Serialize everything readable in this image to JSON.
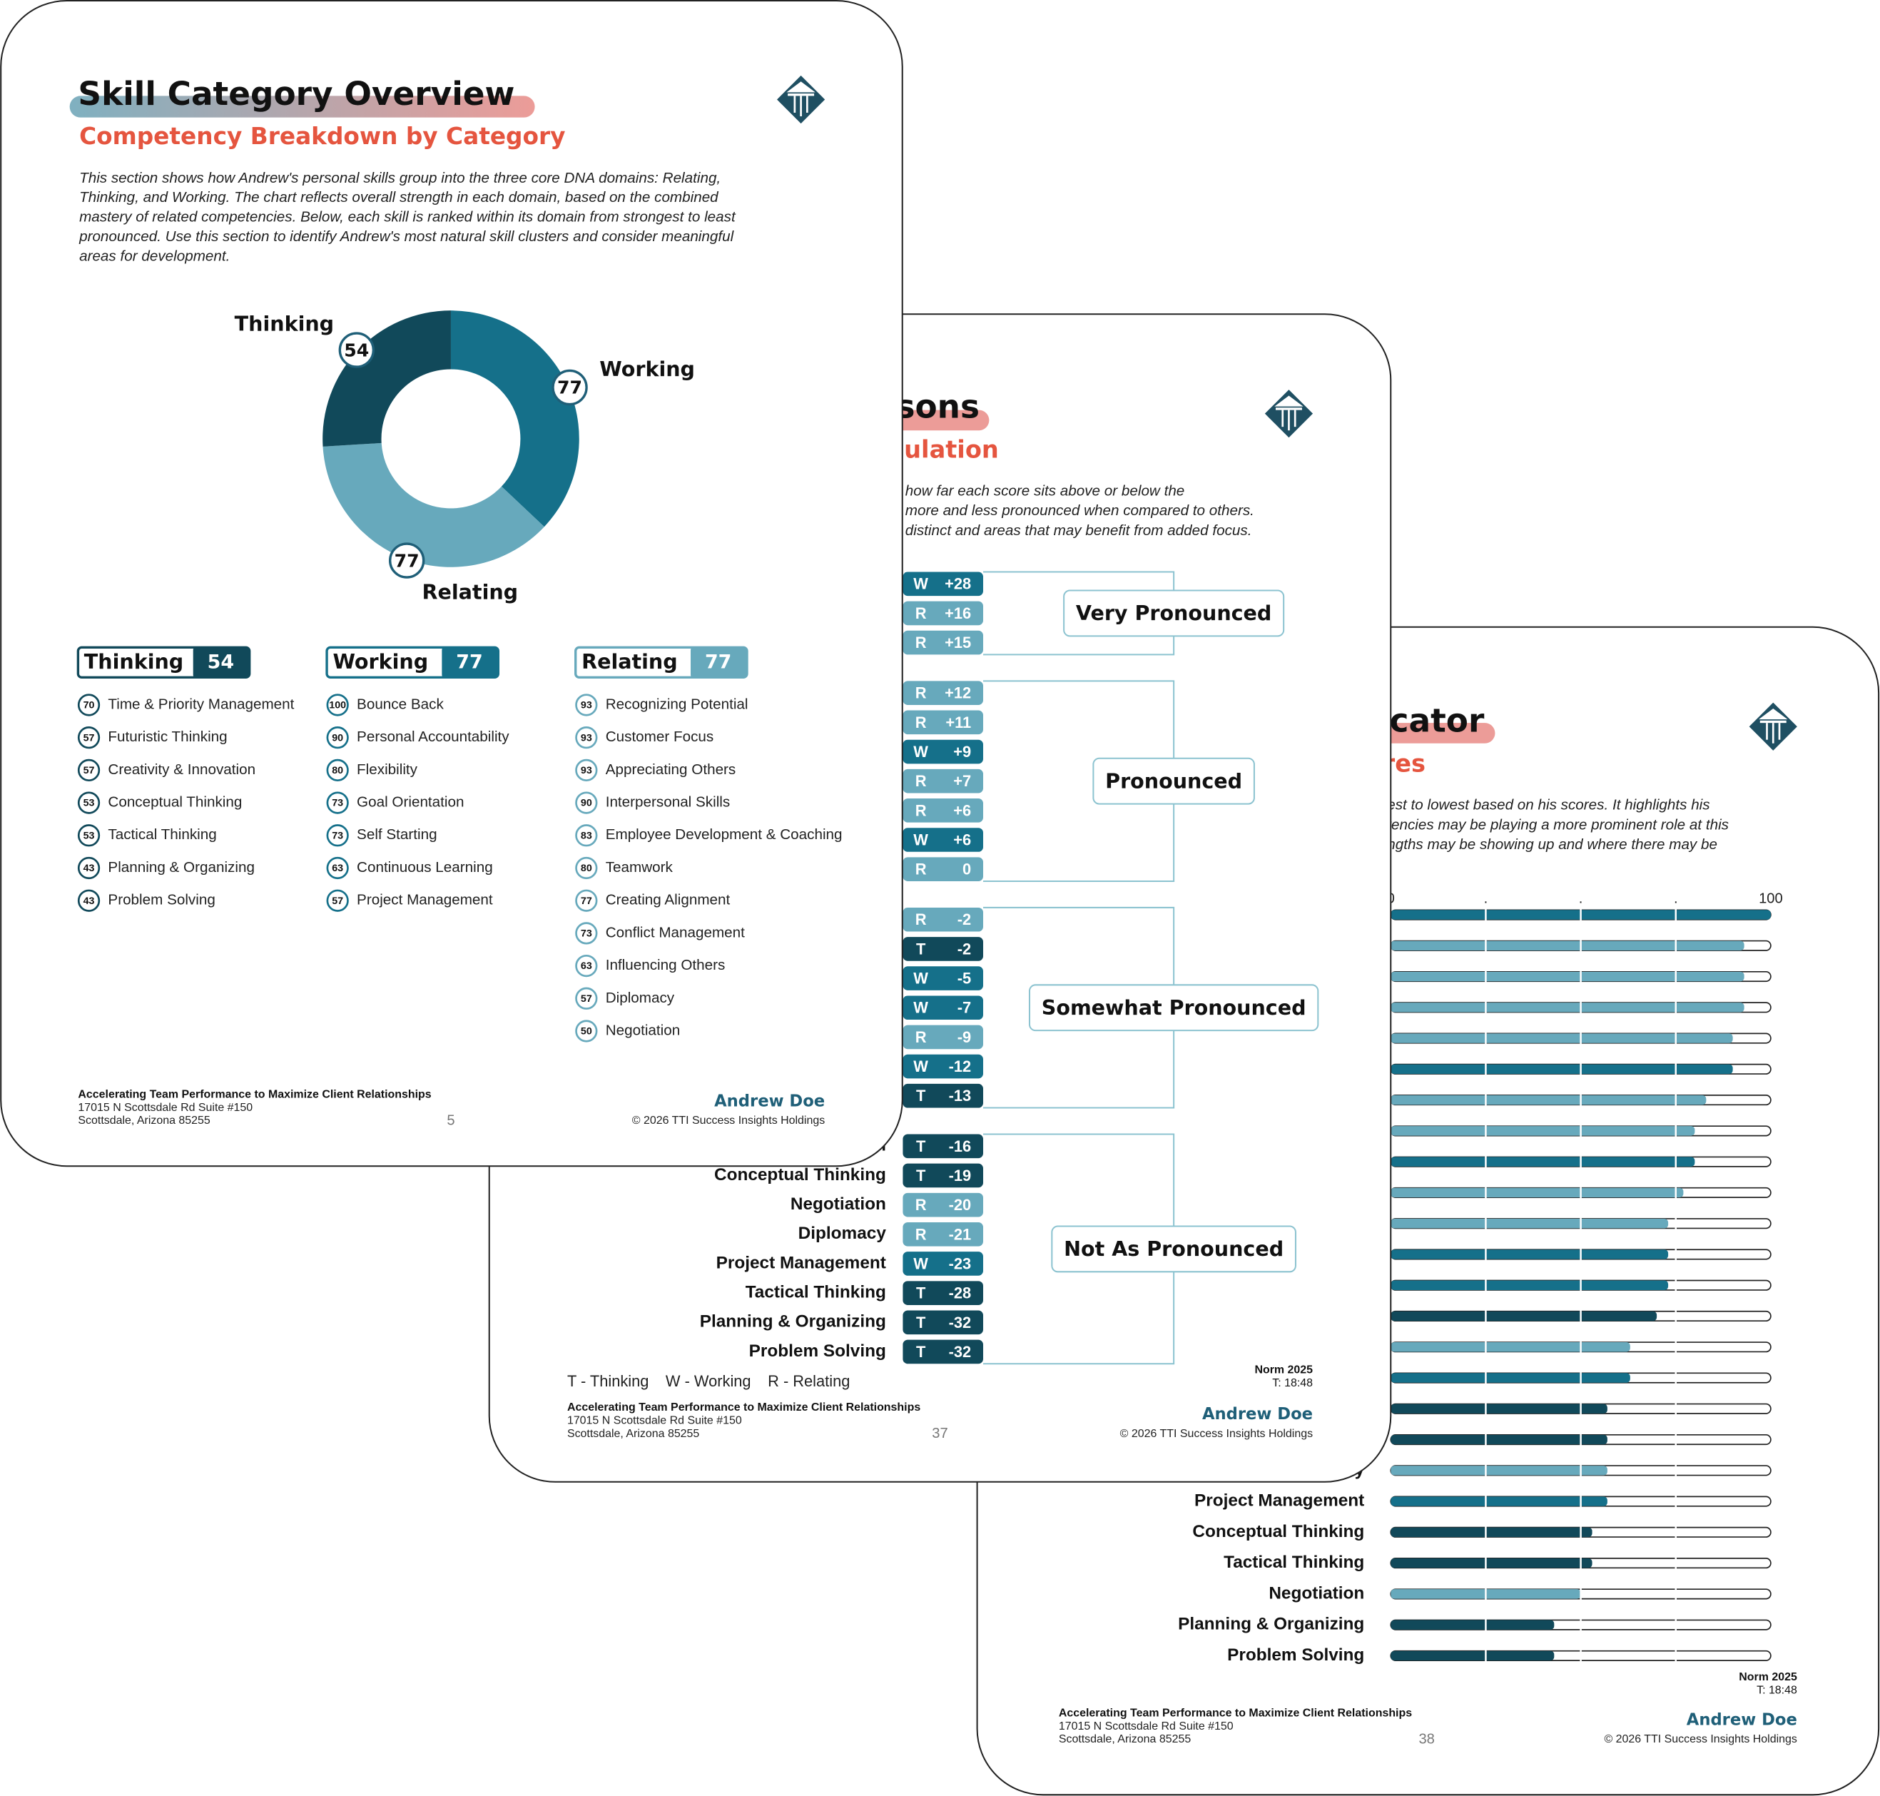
{
  "domain_colors": {
    "T": "#11495a",
    "W": "#15708a",
    "R": "#67a9bc"
  },
  "page38": {
    "title": "cator",
    "subtitle": "res",
    "intro": [
      "est to lowest based on his scores.  It highlights his",
      "tencies may be playing a more prominent role at this",
      "ngths may be showing up and where there may be"
    ],
    "xlim": [
      0,
      100
    ],
    "xticks": [
      0,
      {
        "value": 25,
        "label": "."
      },
      {
        "value": 50,
        "label": "."
      },
      {
        "value": 75,
        "label": "."
      },
      100
    ],
    "rows": [
      {
        "label": null,
        "value": 100,
        "domain": "W"
      },
      {
        "label": null,
        "value": 93,
        "domain": "R"
      },
      {
        "label": null,
        "value": 93,
        "domain": "R"
      },
      {
        "label": null,
        "value": 93,
        "domain": "R"
      },
      {
        "label": null,
        "value": 90,
        "domain": "R"
      },
      {
        "label": null,
        "value": 90,
        "domain": "W"
      },
      {
        "label": null,
        "value": 83,
        "domain": "R"
      },
      {
        "label": null,
        "value": 80,
        "domain": "R"
      },
      {
        "label": null,
        "value": 80,
        "domain": "W"
      },
      {
        "label": null,
        "value": 77,
        "domain": "R"
      },
      {
        "label": null,
        "value": 73,
        "domain": "R"
      },
      {
        "label": null,
        "value": 73,
        "domain": "W"
      },
      {
        "label": null,
        "value": 73,
        "domain": "W"
      },
      {
        "label": null,
        "value": 70,
        "domain": "T"
      },
      {
        "label": null,
        "value": 63,
        "domain": "R"
      },
      {
        "label": null,
        "value": 63,
        "domain": "W"
      },
      {
        "label": null,
        "value": 57,
        "domain": "T"
      },
      {
        "label": null,
        "value": 57,
        "domain": "T"
      },
      {
        "label": "Diplomacy",
        "value": 57,
        "domain": "R"
      },
      {
        "label": "Project Management",
        "value": 57,
        "domain": "W"
      },
      {
        "label": "Conceptual Thinking",
        "value": 53,
        "domain": "T"
      },
      {
        "label": "Tactical Thinking",
        "value": 53,
        "domain": "T"
      },
      {
        "label": "Negotiation",
        "value": 50,
        "domain": "R"
      },
      {
        "label": "Planning & Organizing",
        "value": 43,
        "domain": "T"
      },
      {
        "label": "Problem Solving",
        "value": 43,
        "domain": "T"
      }
    ],
    "norm": "Norm 2025",
    "norm_time": "T: 18:48",
    "footer": {
      "company": "Accelerating Team Performance to Maximize Client Relationships",
      "address1": "17015 N Scottsdale Rd Suite #150",
      "address2": "Scottsdale, Arizona 85255",
      "page_number": "38",
      "name": "Andrew Doe",
      "copyright": "© 2026 TTI Success Insights Holdings"
    }
  },
  "page37": {
    "title": "sons",
    "subtitle": "ulation",
    "intro": [
      "how far each score sits above or below the",
      "more and less pronounced when compared to others.",
      "distinct and areas that may benefit from added focus."
    ],
    "groups": [
      {
        "label": "Very Pronounced",
        "rows": [
          {
            "label": null,
            "domain": "W",
            "score": "+28"
          },
          {
            "label": null,
            "domain": "R",
            "score": "+16"
          },
          {
            "label": null,
            "domain": "R",
            "score": "+15"
          }
        ]
      },
      {
        "label": "Pronounced",
        "rows": [
          {
            "label": null,
            "domain": "R",
            "score": "+12"
          },
          {
            "label": null,
            "domain": "R",
            "score": "+11"
          },
          {
            "label": null,
            "domain": "W",
            "score": "+9"
          },
          {
            "label": null,
            "domain": "R",
            "score": "+7"
          },
          {
            "label": null,
            "domain": "R",
            "score": "+6"
          },
          {
            "label": null,
            "domain": "W",
            "score": "+6"
          },
          {
            "label": null,
            "domain": "R",
            "score": "0"
          }
        ]
      },
      {
        "label": "Somewhat Pronounced",
        "rows": [
          {
            "label": null,
            "domain": "R",
            "score": "-2"
          },
          {
            "label": null,
            "domain": "T",
            "score": "-2"
          },
          {
            "label": null,
            "domain": "W",
            "score": "-5"
          },
          {
            "label": null,
            "domain": "W",
            "score": "-7"
          },
          {
            "label": null,
            "domain": "R",
            "score": "-9"
          },
          {
            "label": null,
            "domain": "W",
            "score": "-12"
          },
          {
            "label": null,
            "domain": "T",
            "score": "-13"
          }
        ]
      },
      {
        "label": "Not As Pronounced",
        "rows": [
          {
            "label": "Creativity & Innovation",
            "domain": "T",
            "score": "-16"
          },
          {
            "label": "Conceptual Thinking",
            "domain": "T",
            "score": "-19"
          },
          {
            "label": "Negotiation",
            "domain": "R",
            "score": "-20"
          },
          {
            "label": "Diplomacy",
            "domain": "R",
            "score": "-21"
          },
          {
            "label": "Project Management",
            "domain": "W",
            "score": "-23"
          },
          {
            "label": "Tactical Thinking",
            "domain": "T",
            "score": "-28"
          },
          {
            "label": "Planning & Organizing",
            "domain": "T",
            "score": "-32"
          },
          {
            "label": "Problem Solving",
            "domain": "T",
            "score": "-32"
          }
        ]
      }
    ],
    "legend": [
      "T - Thinking",
      "W - Working",
      "R - Relating"
    ],
    "norm": "Norm 2025",
    "norm_time": "T: 18:48",
    "footer": {
      "company": "Accelerating Team Performance to Maximize Client Relationships",
      "address1": "17015 N Scottsdale Rd Suite #150",
      "address2": "Scottsdale, Arizona 85255",
      "page_number": "37",
      "name": "Andrew Doe",
      "copyright": "© 2026 TTI Success Insights Holdings"
    }
  },
  "page5": {
    "title": "Skill Category Overview",
    "subtitle": "Competency Breakdown by Category",
    "intro": [
      "This section shows how Andrew's personal skills group into the three core DNA domains: Relating,",
      "Thinking, and Working.  The chart reflects overall strength in each domain, based on the combined",
      "mastery of related competencies.  Below, each skill is ranked within its domain from strongest to least",
      "pronounced.  Use this section to identify Andrew's most natural skill clusters and consider meaningful",
      "areas for development."
    ],
    "donut": [
      {
        "label": "Working",
        "value": 77,
        "domain": "W"
      },
      {
        "label": "Relating",
        "value": 77,
        "domain": "R"
      },
      {
        "label": "Thinking",
        "value": 54,
        "domain": "T"
      }
    ],
    "columns": [
      {
        "name": "Thinking",
        "score": 54,
        "domain": "T",
        "items": [
          {
            "score": 70,
            "label": "Time & Priority Management"
          },
          {
            "score": 57,
            "label": "Futuristic Thinking"
          },
          {
            "score": 57,
            "label": "Creativity & Innovation"
          },
          {
            "score": 53,
            "label": "Conceptual Thinking"
          },
          {
            "score": 53,
            "label": "Tactical Thinking"
          },
          {
            "score": 43,
            "label": "Planning & Organizing"
          },
          {
            "score": 43,
            "label": "Problem Solving"
          }
        ]
      },
      {
        "name": "Working",
        "score": 77,
        "domain": "W",
        "items": [
          {
            "score": 100,
            "label": "Bounce Back"
          },
          {
            "score": 90,
            "label": "Personal Accountability"
          },
          {
            "score": 80,
            "label": "Flexibility"
          },
          {
            "score": 73,
            "label": "Goal Orientation"
          },
          {
            "score": 73,
            "label": "Self Starting"
          },
          {
            "score": 63,
            "label": "Continuous Learning"
          },
          {
            "score": 57,
            "label": "Project Management"
          }
        ]
      },
      {
        "name": "Relating",
        "score": 77,
        "domain": "R",
        "items": [
          {
            "score": 93,
            "label": "Recognizing Potential"
          },
          {
            "score": 93,
            "label": "Customer Focus"
          },
          {
            "score": 93,
            "label": "Appreciating Others"
          },
          {
            "score": 90,
            "label": "Interpersonal Skills"
          },
          {
            "score": 83,
            "label": "Employee Development & Coaching"
          },
          {
            "score": 80,
            "label": "Teamwork"
          },
          {
            "score": 77,
            "label": "Creating Alignment"
          },
          {
            "score": 73,
            "label": "Conflict Management"
          },
          {
            "score": 63,
            "label": "Influencing Others"
          },
          {
            "score": 57,
            "label": "Diplomacy"
          },
          {
            "score": 50,
            "label": "Negotiation"
          }
        ]
      }
    ],
    "footer": {
      "company": "Accelerating Team Performance to Maximize Client Relationships",
      "address1": "17015 N Scottsdale Rd Suite #150",
      "address2": "Scottsdale, Arizona 85255",
      "page_number": "5",
      "name": "Andrew Doe",
      "copyright": "© 2026 TTI Success Insights Holdings"
    }
  }
}
